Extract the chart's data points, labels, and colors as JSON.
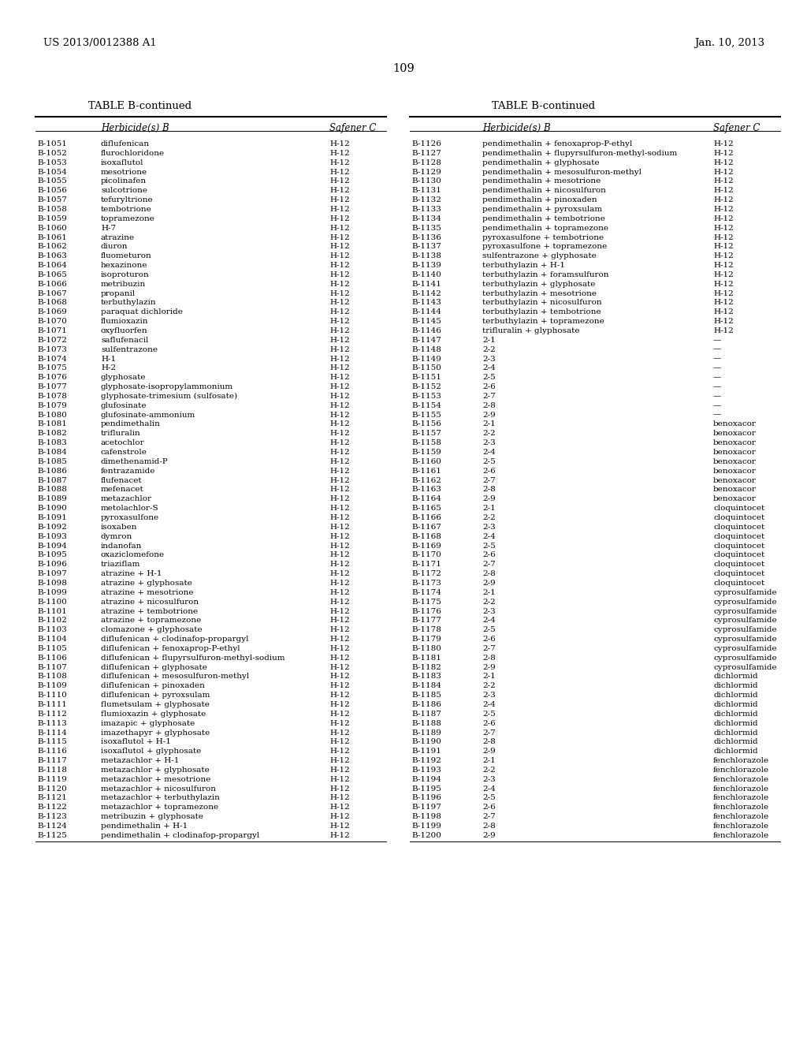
{
  "header_left": "US 2013/0012388 A1",
  "header_right": "Jan. 10, 2013",
  "page_number": "109",
  "table_title": "TABLE B-continued",
  "left_table": [
    [
      "B-1051",
      "diflufenican",
      "H-12"
    ],
    [
      "B-1052",
      "flurochloridone",
      "H-12"
    ],
    [
      "B-1053",
      "isoxaflutol",
      "H-12"
    ],
    [
      "B-1054",
      "mesotrione",
      "H-12"
    ],
    [
      "B-1055",
      "picolinafen",
      "H-12"
    ],
    [
      "B-1056",
      "sulcotrione",
      "H-12"
    ],
    [
      "B-1057",
      "tefuryltrione",
      "H-12"
    ],
    [
      "B-1058",
      "tembotrione",
      "H-12"
    ],
    [
      "B-1059",
      "topramezone",
      "H-12"
    ],
    [
      "B-1060",
      "H-7",
      "H-12"
    ],
    [
      "B-1061",
      "atrazine",
      "H-12"
    ],
    [
      "B-1062",
      "diuron",
      "H-12"
    ],
    [
      "B-1063",
      "fluometuron",
      "H-12"
    ],
    [
      "B-1064",
      "hexazinone",
      "H-12"
    ],
    [
      "B-1065",
      "isoproturon",
      "H-12"
    ],
    [
      "B-1066",
      "metribuzin",
      "H-12"
    ],
    [
      "B-1067",
      "propanil",
      "H-12"
    ],
    [
      "B-1068",
      "terbuthylazin",
      "H-12"
    ],
    [
      "B-1069",
      "paraquat dichloride",
      "H-12"
    ],
    [
      "B-1070",
      "flumioxazin",
      "H-12"
    ],
    [
      "B-1071",
      "oxyfluorfen",
      "H-12"
    ],
    [
      "B-1072",
      "saflufenacil",
      "H-12"
    ],
    [
      "B-1073",
      "sulfentrazone",
      "H-12"
    ],
    [
      "B-1074",
      "H-1",
      "H-12"
    ],
    [
      "B-1075",
      "H-2",
      "H-12"
    ],
    [
      "B-1076",
      "glyphosate",
      "H-12"
    ],
    [
      "B-1077",
      "glyphosate-isopropylammonium",
      "H-12"
    ],
    [
      "B-1078",
      "glyphosate-trimesium (sulfosate)",
      "H-12"
    ],
    [
      "B-1079",
      "glufosinate",
      "H-12"
    ],
    [
      "B-1080",
      "glufosinate-ammonium",
      "H-12"
    ],
    [
      "B-1081",
      "pendimethalin",
      "H-12"
    ],
    [
      "B-1082",
      "trifluralin",
      "H-12"
    ],
    [
      "B-1083",
      "acetochlor",
      "H-12"
    ],
    [
      "B-1084",
      "cafenstrole",
      "H-12"
    ],
    [
      "B-1085",
      "dimethenamid-P",
      "H-12"
    ],
    [
      "B-1086",
      "fentrazamide",
      "H-12"
    ],
    [
      "B-1087",
      "flufenacet",
      "H-12"
    ],
    [
      "B-1088",
      "mefenacet",
      "H-12"
    ],
    [
      "B-1089",
      "metazachlor",
      "H-12"
    ],
    [
      "B-1090",
      "metolachlor-S",
      "H-12"
    ],
    [
      "B-1091",
      "pyroxasulfone",
      "H-12"
    ],
    [
      "B-1092",
      "isoxaben",
      "H-12"
    ],
    [
      "B-1093",
      "dymron",
      "H-12"
    ],
    [
      "B-1094",
      "indanofan",
      "H-12"
    ],
    [
      "B-1095",
      "oxaziclomefone",
      "H-12"
    ],
    [
      "B-1096",
      "triaziflam",
      "H-12"
    ],
    [
      "B-1097",
      "atrazine + H-1",
      "H-12"
    ],
    [
      "B-1098",
      "atrazine + glyphosate",
      "H-12"
    ],
    [
      "B-1099",
      "atrazine + mesotrione",
      "H-12"
    ],
    [
      "B-1100",
      "atrazine + nicosulfuron",
      "H-12"
    ],
    [
      "B-1101",
      "atrazine + tembotrione",
      "H-12"
    ],
    [
      "B-1102",
      "atrazine + topramezone",
      "H-12"
    ],
    [
      "B-1103",
      "clomazone + glyphosate",
      "H-12"
    ],
    [
      "B-1104",
      "diflufenican + clodinafop-propargyl",
      "H-12"
    ],
    [
      "B-1105",
      "diflufenican + fenoxaprop-P-ethyl",
      "H-12"
    ],
    [
      "B-1106",
      "diflufenican + flupyrsulfuron-methyl-sodium",
      "H-12"
    ],
    [
      "B-1107",
      "diflufenican + glyphosate",
      "H-12"
    ],
    [
      "B-1108",
      "diflufenican + mesosulfuron-methyl",
      "H-12"
    ],
    [
      "B-1109",
      "diflufenican + pinoxaden",
      "H-12"
    ],
    [
      "B-1110",
      "diflufenican + pyroxsulam",
      "H-12"
    ],
    [
      "B-1111",
      "flumetsulam + glyphosate",
      "H-12"
    ],
    [
      "B-1112",
      "flumioxazin + glyphosate",
      "H-12"
    ],
    [
      "B-1113",
      "imazapic + glyphosate",
      "H-12"
    ],
    [
      "B-1114",
      "imazethapyr + glyphosate",
      "H-12"
    ],
    [
      "B-1115",
      "isoxaflutol + H-1",
      "H-12"
    ],
    [
      "B-1116",
      "isoxaflutol + glyphosate",
      "H-12"
    ],
    [
      "B-1117",
      "metazachlor + H-1",
      "H-12"
    ],
    [
      "B-1118",
      "metazachlor + glyphosate",
      "H-12"
    ],
    [
      "B-1119",
      "metazachlor + mesotrione",
      "H-12"
    ],
    [
      "B-1120",
      "metazachlor + nicosulfuron",
      "H-12"
    ],
    [
      "B-1121",
      "metazachlor + terbuthylazin",
      "H-12"
    ],
    [
      "B-1122",
      "metazachlor + topramezone",
      "H-12"
    ],
    [
      "B-1123",
      "metribuzin + glyphosate",
      "H-12"
    ],
    [
      "B-1124",
      "pendimethalin + H-1",
      "H-12"
    ],
    [
      "B-1125",
      "pendimethalin + clodinafop-propargyl",
      "H-12"
    ]
  ],
  "right_table": [
    [
      "B-1126",
      "pendimethalin + fenoxaprop-P-ethyl",
      "H-12"
    ],
    [
      "B-1127",
      "pendimethalin + flupyrsulfuron-methyl-sodium",
      "H-12"
    ],
    [
      "B-1128",
      "pendimethalin + glyphosate",
      "H-12"
    ],
    [
      "B-1129",
      "pendimethalin + mesosulfuron-methyl",
      "H-12"
    ],
    [
      "B-1130",
      "pendimethalin + mesotrione",
      "H-12"
    ],
    [
      "B-1131",
      "pendimethalin + nicosulfuron",
      "H-12"
    ],
    [
      "B-1132",
      "pendimethalin + pinoxaden",
      "H-12"
    ],
    [
      "B-1133",
      "pendimethalin + pyroxsulam",
      "H-12"
    ],
    [
      "B-1134",
      "pendimethalin + tembotrione",
      "H-12"
    ],
    [
      "B-1135",
      "pendimethalin + topramezone",
      "H-12"
    ],
    [
      "B-1136",
      "pyroxasulfone + tembotrione",
      "H-12"
    ],
    [
      "B-1137",
      "pyroxasulfone + topramezone",
      "H-12"
    ],
    [
      "B-1138",
      "sulfentrazone + glyphosate",
      "H-12"
    ],
    [
      "B-1139",
      "terbuthylazin + H-1",
      "H-12"
    ],
    [
      "B-1140",
      "terbuthylazin + foramsulfuron",
      "H-12"
    ],
    [
      "B-1141",
      "terbuthylazin + glyphosate",
      "H-12"
    ],
    [
      "B-1142",
      "terbuthylazin + mesotrione",
      "H-12"
    ],
    [
      "B-1143",
      "terbuthylazin + nicosulfuron",
      "H-12"
    ],
    [
      "B-1144",
      "terbuthylazin + tembotrione",
      "H-12"
    ],
    [
      "B-1145",
      "terbuthylazin + topramezone",
      "H-12"
    ],
    [
      "B-1146",
      "trifluralin + glyphosate",
      "H-12"
    ],
    [
      "B-1147",
      "2-1",
      "—"
    ],
    [
      "B-1148",
      "2-2",
      "—"
    ],
    [
      "B-1149",
      "2-3",
      "—"
    ],
    [
      "B-1150",
      "2-4",
      "—"
    ],
    [
      "B-1151",
      "2-5",
      "—"
    ],
    [
      "B-1152",
      "2-6",
      "—"
    ],
    [
      "B-1153",
      "2-7",
      "—"
    ],
    [
      "B-1154",
      "2-8",
      "—"
    ],
    [
      "B-1155",
      "2-9",
      "—"
    ],
    [
      "B-1156",
      "2-1",
      "benoxacor"
    ],
    [
      "B-1157",
      "2-2",
      "benoxacor"
    ],
    [
      "B-1158",
      "2-3",
      "benoxacor"
    ],
    [
      "B-1159",
      "2-4",
      "benoxacor"
    ],
    [
      "B-1160",
      "2-5",
      "benoxacor"
    ],
    [
      "B-1161",
      "2-6",
      "benoxacor"
    ],
    [
      "B-1162",
      "2-7",
      "benoxacor"
    ],
    [
      "B-1163",
      "2-8",
      "benoxacor"
    ],
    [
      "B-1164",
      "2-9",
      "benoxacor"
    ],
    [
      "B-1165",
      "2-1",
      "cloquintocet"
    ],
    [
      "B-1166",
      "2-2",
      "cloquintocet"
    ],
    [
      "B-1167",
      "2-3",
      "cloquintocet"
    ],
    [
      "B-1168",
      "2-4",
      "cloquintocet"
    ],
    [
      "B-1169",
      "2-5",
      "cloquintocet"
    ],
    [
      "B-1170",
      "2-6",
      "cloquintocet"
    ],
    [
      "B-1171",
      "2-7",
      "cloquintocet"
    ],
    [
      "B-1172",
      "2-8",
      "cloquintocet"
    ],
    [
      "B-1173",
      "2-9",
      "cloquintocet"
    ],
    [
      "B-1174",
      "2-1",
      "cyprosulfamide"
    ],
    [
      "B-1175",
      "2-2",
      "cyprosulfamide"
    ],
    [
      "B-1176",
      "2-3",
      "cyprosulfamide"
    ],
    [
      "B-1177",
      "2-4",
      "cyprosulfamide"
    ],
    [
      "B-1178",
      "2-5",
      "cyprosulfamide"
    ],
    [
      "B-1179",
      "2-6",
      "cyprosulfamide"
    ],
    [
      "B-1180",
      "2-7",
      "cyprosulfamide"
    ],
    [
      "B-1181",
      "2-8",
      "cyprosulfamide"
    ],
    [
      "B-1182",
      "2-9",
      "cyprosulfamide"
    ],
    [
      "B-1183",
      "2-1",
      "dichlormid"
    ],
    [
      "B-1184",
      "2-2",
      "dichlormid"
    ],
    [
      "B-1185",
      "2-3",
      "dichlormid"
    ],
    [
      "B-1186",
      "2-4",
      "dichlormid"
    ],
    [
      "B-1187",
      "2-5",
      "dichlormid"
    ],
    [
      "B-1188",
      "2-6",
      "dichlormid"
    ],
    [
      "B-1189",
      "2-7",
      "dichlormid"
    ],
    [
      "B-1190",
      "2-8",
      "dichlormid"
    ],
    [
      "B-1191",
      "2-9",
      "dichlormid"
    ],
    [
      "B-1192",
      "2-1",
      "fenchlorazole"
    ],
    [
      "B-1193",
      "2-2",
      "fenchlorazole"
    ],
    [
      "B-1194",
      "2-3",
      "fenchlorazole"
    ],
    [
      "B-1195",
      "2-4",
      "fenchlorazole"
    ],
    [
      "B-1196",
      "2-5",
      "fenchlorazole"
    ],
    [
      "B-1197",
      "2-6",
      "fenchlorazole"
    ],
    [
      "B-1198",
      "2-7",
      "fenchlorazole"
    ],
    [
      "B-1199",
      "2-8",
      "fenchlorazole"
    ],
    [
      "B-1200",
      "2-9",
      "fenchlorazole"
    ]
  ],
  "bg_color": "#ffffff",
  "text_color": "#000000",
  "font_size_header": 9.5,
  "font_size_title": 9.5,
  "font_size_col_header": 8.5,
  "font_size_data": 7.5,
  "font_size_page": 10.5
}
